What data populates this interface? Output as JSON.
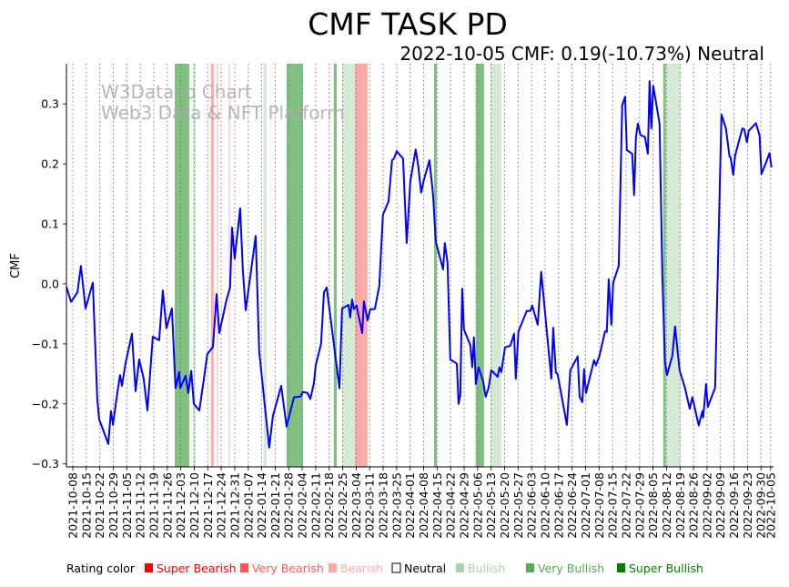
{
  "chart_data": {
    "type": "line",
    "title": "CMF TASK PD",
    "subtitle": "2022-10-05 CMF: 0.19(-10.73%) Neutral",
    "watermark": [
      "W3Data.io Chart",
      "Web3 Data & NFT Platform"
    ],
    "ylabel": "CMF",
    "xlabel": "",
    "x_base_date": "2021-10-08",
    "x_unit": "days since base date",
    "xlim_days": [
      -3.3,
      363.5
    ],
    "ylim": [
      -0.305,
      0.367
    ],
    "yticks": [
      -0.3,
      -0.2,
      -0.1,
      0.0,
      0.1,
      0.2,
      0.3
    ],
    "ytick_labels": [
      "−0.3",
      "−0.2",
      "−0.1",
      "0.0",
      "0.1",
      "0.2",
      "0.3"
    ],
    "xtick_days": [
      0,
      7,
      14,
      21,
      28,
      35,
      42,
      49,
      56,
      63,
      70,
      77,
      84,
      91,
      98,
      105,
      112,
      119,
      126,
      133,
      140,
      147,
      154,
      161,
      168,
      175,
      182,
      189,
      196,
      203,
      210,
      217,
      224,
      231,
      238,
      245,
      252,
      259,
      266,
      273,
      280,
      287,
      294,
      301,
      308,
      315,
      322,
      329,
      336,
      343,
      350,
      357,
      362
    ],
    "xtick_labels": [
      "2021-10-08",
      "2021-10-15",
      "2021-10-22",
      "2021-10-29",
      "2021-11-05",
      "2021-11-12",
      "2021-11-19",
      "2021-11-26",
      "2021-12-03",
      "2021-12-10",
      "2021-12-17",
      "2021-12-24",
      "2021-12-31",
      "2022-01-07",
      "2022-01-14",
      "2022-01-21",
      "2022-01-28",
      "2022-02-04",
      "2022-02-11",
      "2022-02-18",
      "2022-02-25",
      "2022-03-04",
      "2022-03-11",
      "2022-03-18",
      "2022-03-25",
      "2022-04-01",
      "2022-04-08",
      "2022-04-15",
      "2022-04-22",
      "2022-04-29",
      "2022-05-06",
      "2022-05-13",
      "2022-05-20",
      "2022-05-27",
      "2022-06-03",
      "2022-06-10",
      "2022-06-17",
      "2022-06-24",
      "2022-07-01",
      "2022-07-08",
      "2022-07-15",
      "2022-07-22",
      "2022-07-29",
      "2022-08-05",
      "2022-08-12",
      "2022-08-19",
      "2022-08-26",
      "2022-09-02",
      "2022-09-09",
      "2022-09-16",
      "2022-09-23",
      "2022-09-30",
      "2022-10-05"
    ],
    "grid": "vertical dotted at x ticks",
    "series": [
      {
        "name": "CMF",
        "color": "#0000ff",
        "points": [
          [
            -3.3,
            -0.005
          ],
          [
            -0.9,
            -0.03
          ],
          [
            2.4,
            -0.014
          ],
          [
            4.2,
            0.03
          ],
          [
            6.6,
            -0.041
          ],
          [
            10.4,
            0.002
          ],
          [
            12.7,
            -0.192
          ],
          [
            13.7,
            -0.226
          ],
          [
            18.4,
            -0.267
          ],
          [
            19.8,
            -0.212
          ],
          [
            20.8,
            -0.235
          ],
          [
            23.1,
            -0.182
          ],
          [
            24.5,
            -0.152
          ],
          [
            25.5,
            -0.17
          ],
          [
            27.4,
            -0.132
          ],
          [
            30.7,
            -0.083
          ],
          [
            32.6,
            -0.179
          ],
          [
            34.4,
            -0.126
          ],
          [
            36.8,
            -0.158
          ],
          [
            38.7,
            -0.211
          ],
          [
            41.5,
            -0.088
          ],
          [
            44.8,
            -0.094
          ],
          [
            46.7,
            -0.011
          ],
          [
            48.6,
            -0.074
          ],
          [
            51.4,
            -0.041
          ],
          [
            53.3,
            -0.174
          ],
          [
            55.2,
            -0.147
          ],
          [
            55.7,
            -0.174
          ],
          [
            58.5,
            -0.153
          ],
          [
            59.9,
            -0.182
          ],
          [
            61.4,
            -0.145
          ],
          [
            62.8,
            -0.2
          ],
          [
            65.6,
            -0.211
          ],
          [
            68.0,
            -0.159
          ],
          [
            69.8,
            -0.117
          ],
          [
            72.7,
            -0.105
          ],
          [
            74.6,
            -0.017
          ],
          [
            76.0,
            -0.082
          ],
          [
            79.8,
            -0.026
          ],
          [
            81.6,
            -0.006
          ],
          [
            82.6,
            0.094
          ],
          [
            84.0,
            0.042
          ],
          [
            86.8,
            0.126
          ],
          [
            88.2,
            0.024
          ],
          [
            89.7,
            -0.044
          ],
          [
            94.9,
            0.08
          ],
          [
            96.7,
            -0.112
          ],
          [
            101.9,
            -0.273
          ],
          [
            103.8,
            -0.22
          ],
          [
            108.1,
            -0.17
          ],
          [
            110.9,
            -0.238
          ],
          [
            114.7,
            -0.189
          ],
          [
            118.0,
            -0.188
          ],
          [
            119.4,
            -0.18
          ],
          [
            121.8,
            -0.182
          ],
          [
            123.2,
            -0.192
          ],
          [
            125.1,
            -0.165
          ],
          [
            126.0,
            -0.136
          ],
          [
            128.8,
            -0.1
          ],
          [
            130.3,
            -0.014
          ],
          [
            131.7,
            -0.006
          ],
          [
            138.3,
            -0.174
          ],
          [
            139.7,
            -0.041
          ],
          [
            143.0,
            -0.035
          ],
          [
            143.9,
            -0.056
          ],
          [
            144.9,
            -0.026
          ],
          [
            145.8,
            -0.042
          ],
          [
            147.2,
            -0.036
          ],
          [
            150.1,
            -0.082
          ],
          [
            151.0,
            -0.029
          ],
          [
            152.9,
            -0.061
          ],
          [
            154.3,
            -0.042
          ],
          [
            156.7,
            -0.042
          ],
          [
            159.0,
            -0.003
          ],
          [
            160.9,
            0.115
          ],
          [
            163.8,
            0.138
          ],
          [
            165.6,
            0.206
          ],
          [
            166.6,
            0.209
          ],
          [
            168.0,
            0.221
          ],
          [
            171.3,
            0.209
          ],
          [
            173.2,
            0.068
          ],
          [
            175.1,
            0.171
          ],
          [
            177.9,
            0.224
          ],
          [
            179.3,
            0.194
          ],
          [
            180.7,
            0.152
          ],
          [
            182.2,
            0.174
          ],
          [
            185.0,
            0.206
          ],
          [
            186.9,
            0.148
          ],
          [
            188.3,
            0.07
          ],
          [
            192.1,
            0.024
          ],
          [
            193.0,
            0.068
          ],
          [
            194.4,
            0.035
          ],
          [
            195.8,
            -0.126
          ],
          [
            199.2,
            -0.133
          ],
          [
            200.1,
            -0.2
          ],
          [
            201.0,
            -0.185
          ],
          [
            202.0,
            -0.008
          ],
          [
            202.9,
            -0.076
          ],
          [
            206.2,
            -0.102
          ],
          [
            207.2,
            -0.139
          ],
          [
            208.1,
            -0.089
          ],
          [
            209.1,
            -0.167
          ],
          [
            210.5,
            -0.139
          ],
          [
            212.8,
            -0.162
          ],
          [
            214.2,
            -0.188
          ],
          [
            215.7,
            -0.173
          ],
          [
            217.1,
            -0.144
          ],
          [
            220.4,
            -0.155
          ],
          [
            221.3,
            -0.139
          ],
          [
            222.3,
            -0.147
          ],
          [
            224.2,
            -0.106
          ],
          [
            227.0,
            -0.103
          ],
          [
            228.9,
            -0.083
          ],
          [
            229.8,
            -0.158
          ],
          [
            231.2,
            -0.079
          ],
          [
            235.5,
            -0.045
          ],
          [
            237.4,
            -0.045
          ],
          [
            238.3,
            -0.036
          ],
          [
            241.2,
            -0.068
          ],
          [
            243.0,
            0.02
          ],
          [
            248.2,
            -0.158
          ],
          [
            249.2,
            -0.073
          ],
          [
            250.6,
            -0.148
          ],
          [
            251.5,
            -0.15
          ],
          [
            256.3,
            -0.235
          ],
          [
            258.1,
            -0.144
          ],
          [
            261.9,
            -0.121
          ],
          [
            262.9,
            -0.188
          ],
          [
            264.3,
            -0.197
          ],
          [
            265.2,
            -0.142
          ],
          [
            266.2,
            -0.182
          ],
          [
            270.4,
            -0.127
          ],
          [
            271.4,
            -0.136
          ],
          [
            273.2,
            -0.12
          ],
          [
            276.1,
            -0.079
          ],
          [
            277.0,
            -0.08
          ],
          [
            278.0,
            0.008
          ],
          [
            279.4,
            -0.068
          ],
          [
            280.3,
            0.002
          ],
          [
            283.2,
            0.03
          ],
          [
            285.0,
            0.298
          ],
          [
            286.5,
            0.312
          ],
          [
            287.4,
            0.223
          ],
          [
            290.2,
            0.217
          ],
          [
            291.2,
            0.148
          ],
          [
            292.1,
            0.244
          ],
          [
            293.1,
            0.267
          ],
          [
            294.5,
            0.248
          ],
          [
            296.8,
            0.245
          ],
          [
            298.3,
            0.217
          ],
          [
            299.2,
            0.338
          ],
          [
            300.1,
            0.259
          ],
          [
            301.1,
            0.33
          ],
          [
            304.4,
            0.267
          ],
          [
            305.8,
            0.015
          ],
          [
            307.2,
            -0.129
          ],
          [
            308.2,
            -0.152
          ],
          [
            311.0,
            -0.12
          ],
          [
            312.4,
            -0.071
          ],
          [
            314.8,
            -0.144
          ],
          [
            317.6,
            -0.174
          ],
          [
            320.0,
            -0.208
          ],
          [
            321.4,
            -0.189
          ],
          [
            324.7,
            -0.236
          ],
          [
            326.6,
            -0.212
          ],
          [
            327.0,
            -0.223
          ],
          [
            328.5,
            -0.167
          ],
          [
            329.4,
            -0.205
          ],
          [
            333.2,
            -0.173
          ],
          [
            336.5,
            0.282
          ],
          [
            338.8,
            0.259
          ],
          [
            340.7,
            0.212
          ],
          [
            341.2,
            0.211
          ],
          [
            342.6,
            0.182
          ],
          [
            343.6,
            0.214
          ],
          [
            347.3,
            0.259
          ],
          [
            348.3,
            0.258
          ],
          [
            349.7,
            0.236
          ],
          [
            350.6,
            0.255
          ],
          [
            354.4,
            0.268
          ],
          [
            356.3,
            0.247
          ],
          [
            357.2,
            0.183
          ],
          [
            359.6,
            0.202
          ],
          [
            361.4,
            0.218
          ],
          [
            362.4,
            0.194
          ]
        ]
      }
    ],
    "rating_bands": [
      {
        "start": 52.9,
        "end": 60.4,
        "rating": "very_bullish"
      },
      {
        "start": 62.3,
        "end": 63.7,
        "rating": "bullish"
      },
      {
        "start": 71.7,
        "end": 73.1,
        "rating": "very_bearish"
      },
      {
        "start": 74.6,
        "end": 75.5,
        "rating": "bearish"
      },
      {
        "start": 80.7,
        "end": 81.6,
        "rating": "bearish"
      },
      {
        "start": 99.0,
        "end": 100.5,
        "rating": "bullish"
      },
      {
        "start": 110.9,
        "end": 119.4,
        "rating": "very_bullish"
      },
      {
        "start": 135.4,
        "end": 136.9,
        "rating": "very_bullish"
      },
      {
        "start": 139.7,
        "end": 146.3,
        "rating": "bullish"
      },
      {
        "start": 146.3,
        "end": 152.9,
        "rating": "very_bearish"
      },
      {
        "start": 187.4,
        "end": 188.8,
        "rating": "very_bullish"
      },
      {
        "start": 209.0,
        "end": 213.3,
        "rating": "very_bullish"
      },
      {
        "start": 216.6,
        "end": 222.3,
        "rating": "bullish"
      },
      {
        "start": 306.3,
        "end": 315.2,
        "rating": "bullish"
      },
      {
        "start": 306.3,
        "end": 307.6,
        "rating": "very_bullish"
      }
    ],
    "band_colors": {
      "super_bearish": "#ff7f7f",
      "very_bearish": "#ffaaaa",
      "bearish": "#ffd5d5",
      "bullish": "#d4ead4",
      "very_bullish": "#80c080",
      "super_bullish": "#40a040"
    },
    "legend": {
      "title": "Rating color",
      "placement": "bottom",
      "items": [
        {
          "label": "Super Bearish",
          "color": "#ff0000",
          "text_color": "#ff0000"
        },
        {
          "label": "Very Bearish",
          "color": "#ff5555",
          "text_color": "#ff5555"
        },
        {
          "label": "Bearish",
          "color": "#ffaaaa",
          "text_color": "#ffaaaa"
        },
        {
          "label": "Neutral",
          "color": "#ffffff",
          "text_color": "#000000"
        },
        {
          "label": "Bullish",
          "color": "#aad4aa",
          "text_color": "#aad4aa"
        },
        {
          "label": "Very Bullish",
          "color": "#55aa55",
          "text_color": "#55aa55"
        },
        {
          "label": "Super Bullish",
          "color": "#008000",
          "text_color": "#008000"
        }
      ]
    }
  }
}
